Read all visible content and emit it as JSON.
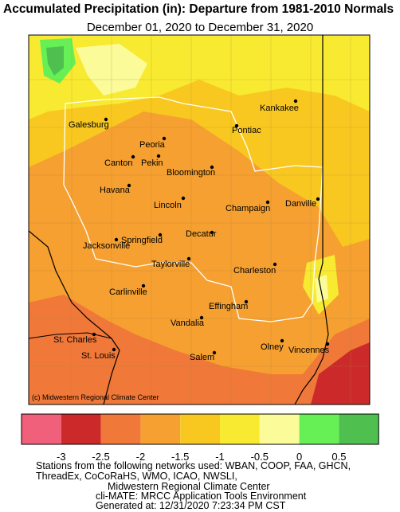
{
  "header": {
    "title": "Accumulated Precipitation (in): Departure from 1981-2010 Normals",
    "subtitle": "December 01, 2020 to December 31, 2020"
  },
  "map": {
    "credit": "(c) Midwestern Regional Climate Center",
    "cities": [
      "Kankakee",
      "Galesburg",
      "Pontiac",
      "Peoria",
      "Canton",
      "Pekin",
      "Bloomington",
      "Havana",
      "Lincoln",
      "Champaign",
      "Danville",
      "Decatur",
      "Jacksonville",
      "Springfield",
      "Taylorville",
      "Charleston",
      "Carlinville",
      "Effingham",
      "Vandalia",
      "St. Charles",
      "Olney",
      "Vincennes",
      "St. Louis",
      "Salem"
    ]
  },
  "legend": {
    "colors": [
      "#f0607a",
      "#cc2a2a",
      "#f07838",
      "#f5a030",
      "#f8c820",
      "#f8ea30",
      "#fbfb9a",
      "#66f055",
      "#4fc04f"
    ],
    "ticks": [
      -3,
      -2.5,
      -2,
      -1.5,
      -1,
      -0.5,
      0,
      0.5
    ]
  },
  "footer": {
    "lines": [
      "Stations from the following networks used: WBAN, COOP, FAA, GHCN,",
      "ThreadEx, CoCoRaHS, WMO, ICAO, NWSLI,",
      "Midwestern Regional Climate Center",
      "cli-MATE: MRCC Application Tools Environment",
      "Generated at: 12/31/2020 7:23:34 PM CST"
    ]
  }
}
